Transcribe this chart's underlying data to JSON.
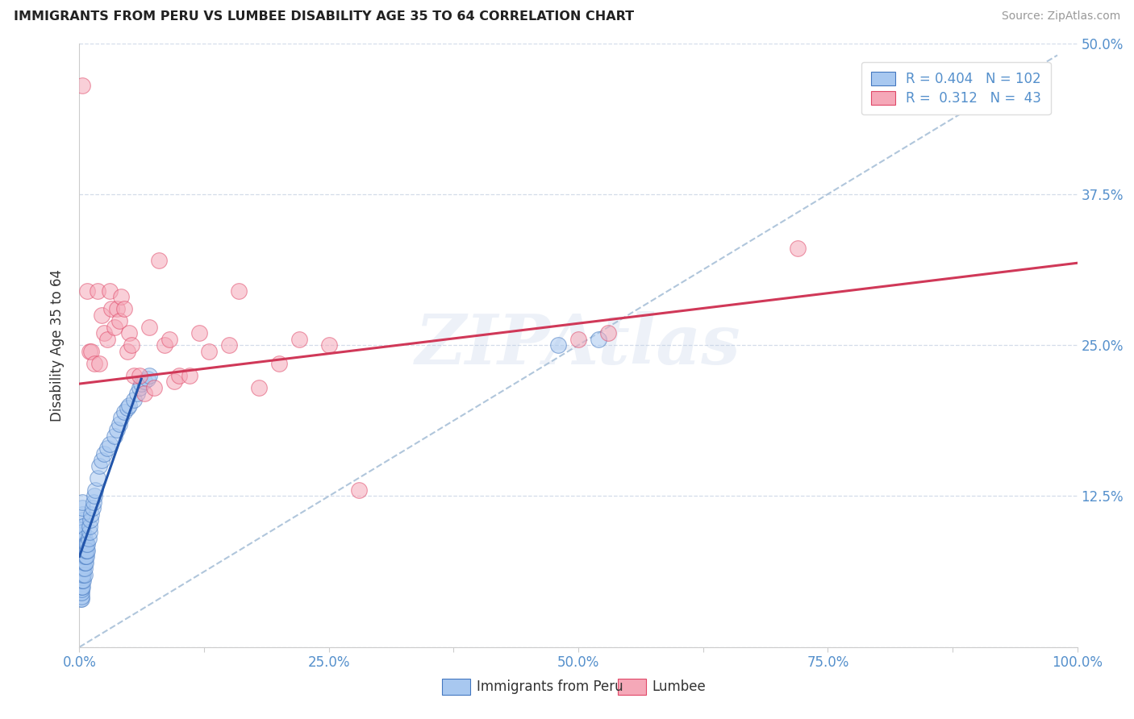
{
  "title": "IMMIGRANTS FROM PERU VS LUMBEE DISABILITY AGE 35 TO 64 CORRELATION CHART",
  "source": "Source: ZipAtlas.com",
  "ylabel": "Disability Age 35 to 64",
  "xlim": [
    0.0,
    1.0
  ],
  "ylim": [
    0.0,
    0.5
  ],
  "xticks": [
    0.0,
    0.125,
    0.25,
    0.375,
    0.5,
    0.625,
    0.75,
    0.875,
    1.0
  ],
  "xticklabels": [
    "0.0%",
    "",
    "25.0%",
    "",
    "50.0%",
    "",
    "75.0%",
    "",
    "100.0%"
  ],
  "yticks": [
    0.0,
    0.125,
    0.25,
    0.375,
    0.5
  ],
  "yticklabels": [
    "",
    "12.5%",
    "25.0%",
    "37.5%",
    "50.0%"
  ],
  "blue_color": "#A8C8F0",
  "blue_edge_color": "#4478C0",
  "pink_color": "#F5A8B8",
  "pink_edge_color": "#E04868",
  "blue_line_color": "#2255AA",
  "pink_line_color": "#D03858",
  "ref_line_color": "#A8C0D8",
  "legend_R_blue": "0.404",
  "legend_N_blue": "102",
  "legend_R_pink": "0.312",
  "legend_N_pink": "43",
  "watermark": "ZIPAtlas",
  "blue_scatter_x": [
    0.001,
    0.001,
    0.001,
    0.001,
    0.001,
    0.001,
    0.001,
    0.001,
    0.001,
    0.001,
    0.002,
    0.002,
    0.002,
    0.002,
    0.002,
    0.002,
    0.002,
    0.002,
    0.002,
    0.002,
    0.002,
    0.002,
    0.002,
    0.002,
    0.002,
    0.002,
    0.002,
    0.002,
    0.002,
    0.002,
    0.003,
    0.003,
    0.003,
    0.003,
    0.003,
    0.003,
    0.003,
    0.003,
    0.003,
    0.003,
    0.003,
    0.003,
    0.003,
    0.003,
    0.003,
    0.004,
    0.004,
    0.004,
    0.004,
    0.004,
    0.004,
    0.004,
    0.004,
    0.004,
    0.004,
    0.005,
    0.005,
    0.005,
    0.005,
    0.005,
    0.005,
    0.005,
    0.006,
    0.006,
    0.006,
    0.006,
    0.007,
    0.007,
    0.007,
    0.008,
    0.008,
    0.009,
    0.01,
    0.01,
    0.011,
    0.012,
    0.013,
    0.014,
    0.015,
    0.016,
    0.018,
    0.02,
    0.022,
    0.025,
    0.028,
    0.03,
    0.035,
    0.038,
    0.04,
    0.042,
    0.045,
    0.048,
    0.05,
    0.055,
    0.058,
    0.06,
    0.062,
    0.065,
    0.068,
    0.07,
    0.48,
    0.52
  ],
  "blue_scatter_y": [
    0.04,
    0.045,
    0.05,
    0.055,
    0.06,
    0.065,
    0.07,
    0.075,
    0.08,
    0.085,
    0.04,
    0.042,
    0.045,
    0.048,
    0.05,
    0.055,
    0.058,
    0.06,
    0.065,
    0.068,
    0.07,
    0.075,
    0.078,
    0.08,
    0.082,
    0.085,
    0.088,
    0.09,
    0.092,
    0.095,
    0.05,
    0.055,
    0.06,
    0.065,
    0.07,
    0.075,
    0.08,
    0.085,
    0.09,
    0.095,
    0.1,
    0.105,
    0.11,
    0.115,
    0.12,
    0.055,
    0.06,
    0.065,
    0.07,
    0.075,
    0.08,
    0.085,
    0.09,
    0.095,
    0.1,
    0.06,
    0.065,
    0.07,
    0.075,
    0.08,
    0.085,
    0.09,
    0.07,
    0.075,
    0.08,
    0.085,
    0.075,
    0.08,
    0.085,
    0.08,
    0.085,
    0.09,
    0.095,
    0.1,
    0.105,
    0.11,
    0.115,
    0.12,
    0.125,
    0.13,
    0.14,
    0.15,
    0.155,
    0.16,
    0.165,
    0.168,
    0.175,
    0.18,
    0.185,
    0.19,
    0.195,
    0.198,
    0.2,
    0.205,
    0.21,
    0.215,
    0.218,
    0.22,
    0.222,
    0.225,
    0.25,
    0.255
  ],
  "pink_scatter_x": [
    0.003,
    0.008,
    0.01,
    0.012,
    0.015,
    0.018,
    0.02,
    0.022,
    0.025,
    0.028,
    0.03,
    0.032,
    0.035,
    0.038,
    0.04,
    0.042,
    0.045,
    0.048,
    0.05,
    0.052,
    0.055,
    0.06,
    0.065,
    0.07,
    0.075,
    0.08,
    0.085,
    0.09,
    0.095,
    0.1,
    0.11,
    0.12,
    0.13,
    0.15,
    0.16,
    0.18,
    0.2,
    0.22,
    0.25,
    0.28,
    0.5,
    0.53,
    0.72
  ],
  "pink_scatter_y": [
    0.465,
    0.295,
    0.245,
    0.245,
    0.235,
    0.295,
    0.235,
    0.275,
    0.26,
    0.255,
    0.295,
    0.28,
    0.265,
    0.28,
    0.27,
    0.29,
    0.28,
    0.245,
    0.26,
    0.25,
    0.225,
    0.225,
    0.21,
    0.265,
    0.215,
    0.32,
    0.25,
    0.255,
    0.22,
    0.225,
    0.225,
    0.26,
    0.245,
    0.25,
    0.295,
    0.215,
    0.235,
    0.255,
    0.25,
    0.13,
    0.255,
    0.26,
    0.33
  ],
  "blue_trend_x": [
    0.0,
    0.062
  ],
  "blue_trend_y": [
    0.075,
    0.222
  ],
  "pink_trend_x": [
    0.0,
    1.0
  ],
  "pink_trend_y": [
    0.218,
    0.318
  ],
  "ref_line_x": [
    0.0,
    0.98
  ],
  "ref_line_y": [
    0.0,
    0.49
  ]
}
